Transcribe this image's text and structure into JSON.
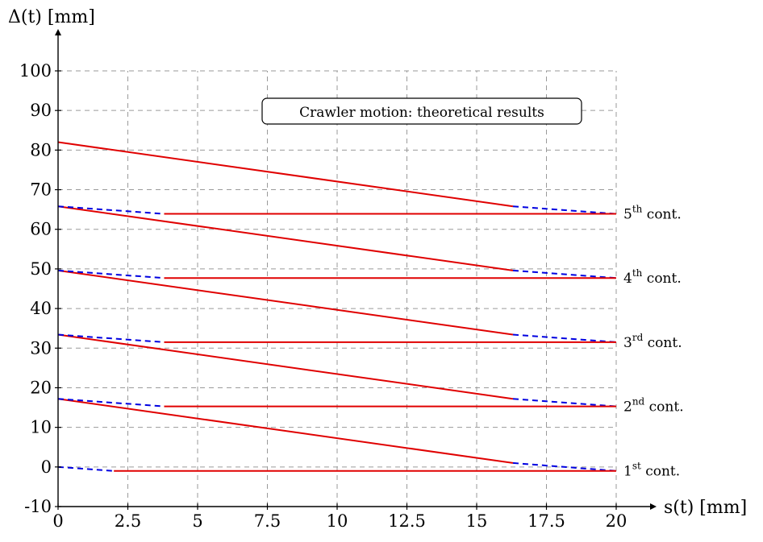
{
  "chart_data": {
    "type": "line",
    "title": "",
    "annotation": "Crawler motion: theoretical results",
    "xlabel": "s(t) [mm]",
    "ylabel": "Δ(t) [mm]",
    "xlim": [
      0,
      20
    ],
    "ylim": [
      -10,
      100
    ],
    "x_ticks": [
      0,
      2.5,
      5,
      7.5,
      10,
      12.5,
      15,
      17.5,
      20
    ],
    "x_tick_labels": [
      "0",
      "2.5",
      "5",
      "7.5",
      "10",
      "12.5",
      "15",
      "17.5",
      "20"
    ],
    "y_ticks": [
      -10,
      0,
      10,
      20,
      30,
      40,
      50,
      60,
      70,
      80,
      90,
      100
    ],
    "y_tick_labels": [
      "-10",
      "0",
      "10",
      "20",
      "30",
      "40",
      "50",
      "60",
      "70",
      "80",
      "90",
      "100"
    ],
    "grid": true,
    "grid_style": "dashed",
    "colors": {
      "solid": "#e00000",
      "dashed": "#0000e0"
    },
    "series": [
      {
        "contact_number": "1",
        "contact_suffix": "st",
        "label_rest": "cont.",
        "dashed_segments": [
          {
            "x": [
              0,
              2
            ],
            "y": [
              0,
              -1
            ]
          },
          {
            "x": [
              16.3,
              20
            ],
            "y": [
              1,
              -1
            ]
          }
        ],
        "solid_segments": [
          {
            "x": [
              2,
              20
            ],
            "y": [
              -1,
              -1
            ]
          },
          {
            "x": [
              0,
              16.3
            ],
            "y": [
              17.2,
              1
            ]
          }
        ]
      },
      {
        "contact_number": "2",
        "contact_suffix": "nd",
        "label_rest": "cont.",
        "dashed_segments": [
          {
            "x": [
              0,
              3.8
            ],
            "y": [
              17.2,
              15.3
            ]
          },
          {
            "x": [
              16.3,
              20
            ],
            "y": [
              17.2,
              15.3
            ]
          }
        ],
        "solid_segments": [
          {
            "x": [
              3.8,
              20
            ],
            "y": [
              15.3,
              15.3
            ]
          },
          {
            "x": [
              0,
              16.3
            ],
            "y": [
              33.4,
              17.2
            ]
          }
        ]
      },
      {
        "contact_number": "3",
        "contact_suffix": "rd",
        "label_rest": "cont.",
        "dashed_segments": [
          {
            "x": [
              0,
              3.8
            ],
            "y": [
              33.4,
              31.5
            ]
          },
          {
            "x": [
              16.3,
              20
            ],
            "y": [
              33.4,
              31.5
            ]
          }
        ],
        "solid_segments": [
          {
            "x": [
              3.8,
              20
            ],
            "y": [
              31.5,
              31.5
            ]
          },
          {
            "x": [
              0,
              16.3
            ],
            "y": [
              49.6,
              33.4
            ]
          }
        ]
      },
      {
        "contact_number": "4",
        "contact_suffix": "th",
        "label_rest": "cont.",
        "dashed_segments": [
          {
            "x": [
              0,
              3.8
            ],
            "y": [
              49.6,
              47.7
            ]
          },
          {
            "x": [
              16.3,
              20
            ],
            "y": [
              49.6,
              47.7
            ]
          }
        ],
        "solid_segments": [
          {
            "x": [
              3.8,
              20
            ],
            "y": [
              47.7,
              47.7
            ]
          },
          {
            "x": [
              0,
              16.3
            ],
            "y": [
              65.8,
              49.6
            ]
          }
        ]
      },
      {
        "contact_number": "5",
        "contact_suffix": "th",
        "label_rest": "cont.",
        "dashed_segments": [
          {
            "x": [
              0,
              3.8
            ],
            "y": [
              65.8,
              63.9
            ]
          },
          {
            "x": [
              16.3,
              20
            ],
            "y": [
              65.8,
              63.9
            ]
          }
        ],
        "solid_segments": [
          {
            "x": [
              3.8,
              20
            ],
            "y": [
              63.9,
              63.9
            ]
          },
          {
            "x": [
              0,
              16.3
            ],
            "y": [
              82,
              65.8
            ]
          }
        ]
      }
    ]
  }
}
